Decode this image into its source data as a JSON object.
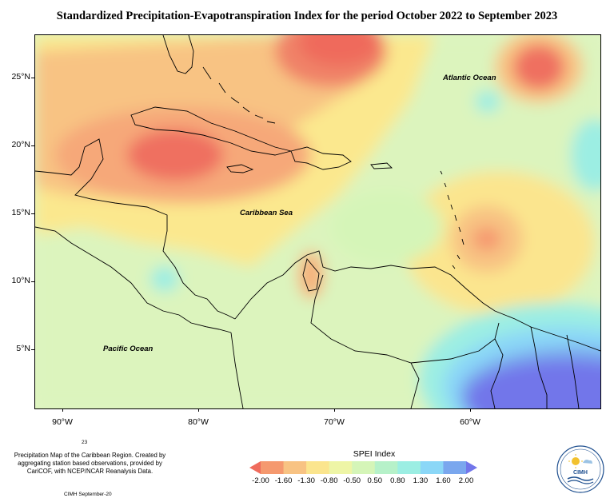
{
  "title": "Standardized Precipitation-Evapotranspiration Index for the period October 2022 to September 2023",
  "ocean_labels": [
    "Atlantic Ocean",
    "Caribbean Sea",
    "Pacific Ocean"
  ],
  "lat_ticks": [
    "25°N",
    "20°N",
    "15°N",
    "10°N",
    "5°N"
  ],
  "lon_ticks": [
    "90°W",
    "80°W",
    "70°W",
    "60°W"
  ],
  "page_number": "23",
  "credits": "Precipitation Map of the Caribbean Region. Created by aggregating station based observations, provided by CariCOF, with NCEP/NCAR Reanalysis Data.",
  "footer": "CIMH September-20",
  "legend": {
    "title": "SPEI Index",
    "labels": [
      "-2.00",
      "-1.60",
      "-1.30",
      "-0.80",
      "-0.50",
      "0.50",
      "0.80",
      "1.30",
      "1.60",
      "2.00"
    ],
    "colors": [
      "#ef6b5c",
      "#f5996f",
      "#f8c383",
      "#fbe58e",
      "#eef5a6",
      "#d5f5b8",
      "#b6f1c9",
      "#9ceee3",
      "#8bd7f7",
      "#7aa7ee",
      "#7276ea"
    ]
  },
  "logo_text": "CIMH"
}
